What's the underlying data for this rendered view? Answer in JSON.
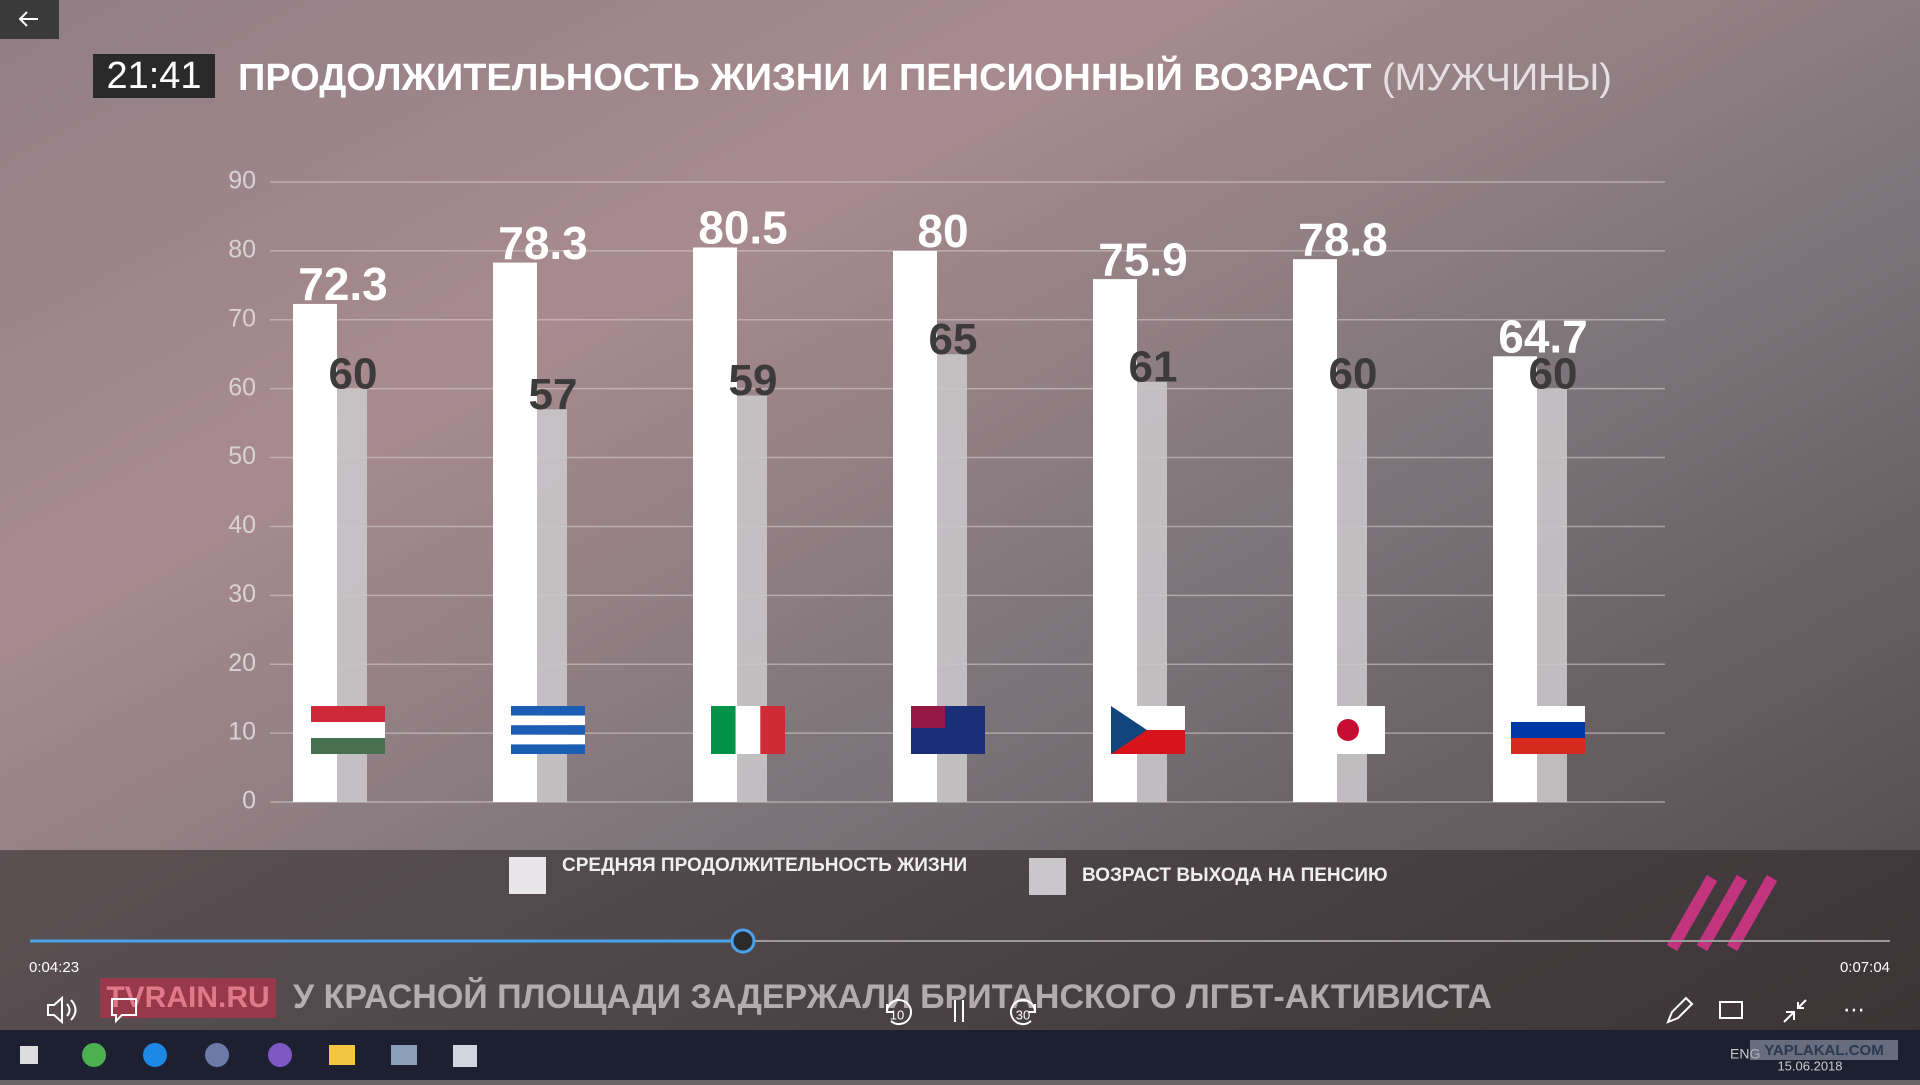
{
  "player": {
    "clock": "21:41",
    "time_elapsed": "0:04:23",
    "time_total": "0:07:04",
    "ticker_source": "TVRAIN.RU",
    "ticker_text": "У КРАСНОЙ ПЛОЩАДИ ЗАДЕРЖАЛИ БРИТАНСКОГО ЛГБТ-АКТИВИСТА",
    "skip_back": "10",
    "skip_forward": "30"
  },
  "taskbar": {
    "language": "ENG",
    "date": "15.06.2018",
    "watermark": "YAPLAKAL.COM"
  },
  "chart_data": {
    "type": "bar",
    "title": "ПРОДОЛЖИТЕЛЬНОСТЬ ЖИЗНИ И ПЕНСИОННЫЙ ВОЗРАСТ",
    "subtitle": "(МУЖЧИНЫ)",
    "categories": [
      null,
      null,
      null,
      null,
      null,
      null,
      null
    ],
    "series": [
      {
        "name": "СРЕДНЯЯ ПРОДОЛЖИТЕЛЬНОСТЬ ЖИЗНИ",
        "color": "#ffffff",
        "values": [
          72.3,
          78.3,
          80.5,
          80,
          75.9,
          78.8,
          64.7
        ]
      },
      {
        "name": "ВОЗРАСТ ВЫХОДА НА ПЕНСИЮ",
        "color": "#c9c7c9",
        "values": [
          60,
          57,
          59,
          65,
          61,
          60,
          60
        ]
      }
    ],
    "ylim": [
      0,
      90
    ],
    "yticks": [
      0,
      10,
      20,
      30,
      40,
      50,
      60,
      70,
      80,
      90
    ],
    "grid": true
  }
}
